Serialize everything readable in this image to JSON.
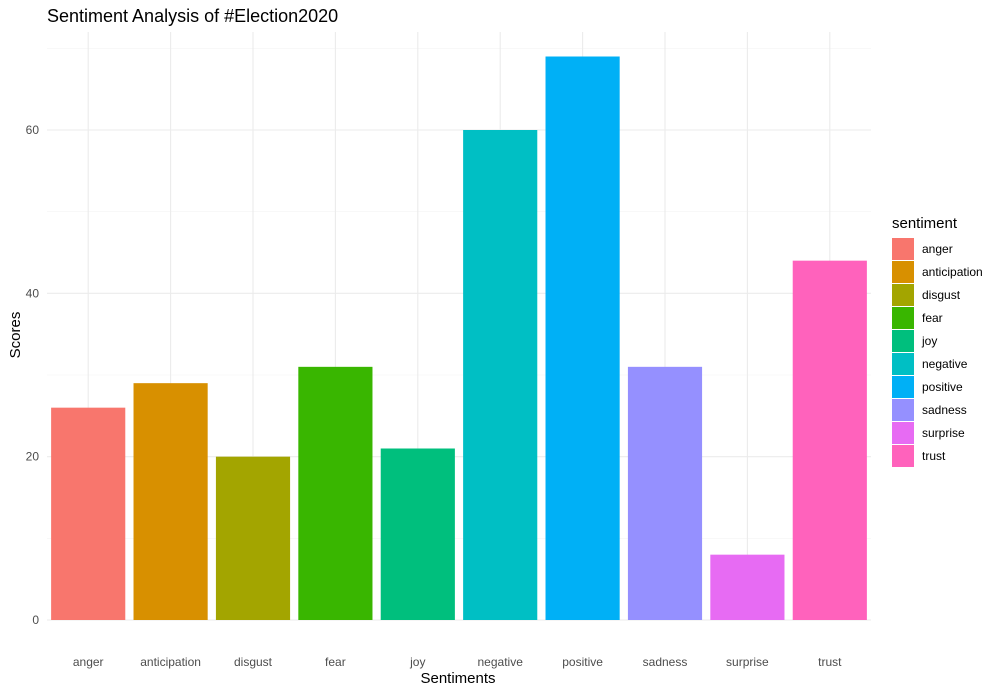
{
  "chart_data": {
    "type": "bar",
    "title": "Sentiment Analysis of #Election2020",
    "xlabel": "Sentiments",
    "ylabel": "Scores",
    "categories": [
      "anger",
      "anticipation",
      "disgust",
      "fear",
      "joy",
      "negative",
      "positive",
      "sadness",
      "surprise",
      "trust"
    ],
    "values": [
      26,
      29,
      20,
      31,
      21,
      60,
      69,
      31,
      8,
      44
    ],
    "colors": [
      "#F8766D",
      "#D89000",
      "#A3A500",
      "#39B600",
      "#00BF7D",
      "#00BFC4",
      "#00B0F6",
      "#9590FF",
      "#E76BF3",
      "#FF62BC"
    ],
    "ylim": [
      0,
      72
    ],
    "yticks": [
      0,
      20,
      40,
      60
    ],
    "grid": true,
    "legend": {
      "title": "sentiment",
      "position": "right",
      "items": [
        "anger",
        "anticipation",
        "disgust",
        "fear",
        "joy",
        "negative",
        "positive",
        "sadness",
        "surprise",
        "trust"
      ]
    }
  }
}
